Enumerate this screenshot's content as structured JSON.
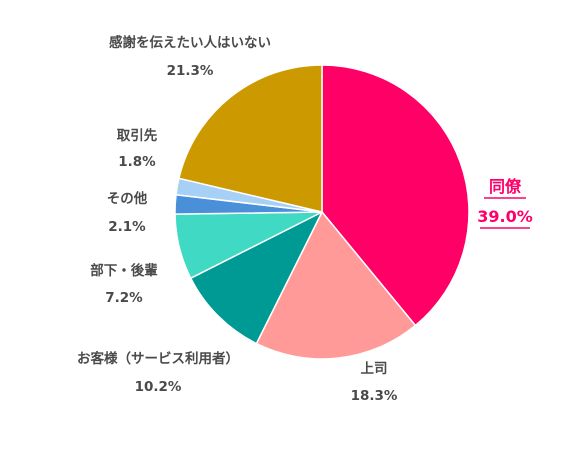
{
  "chart_data": {
    "type": "pie",
    "start_angle_deg": 0,
    "direction": "clockwise",
    "slices": [
      {
        "label": "同僚",
        "value": 39.0,
        "value_text": "39.0%",
        "color": "#ff0066",
        "highlight": true
      },
      {
        "label": "上司",
        "value": 18.3,
        "value_text": "18.3%",
        "color": "#ff9a99"
      },
      {
        "label": "お客様（サービス利用者）",
        "value": 10.2,
        "value_text": "10.2%",
        "color": "#009a94"
      },
      {
        "label": "部下・後輩",
        "value": 7.2,
        "value_text": "7.2%",
        "color": "#3fd9c4"
      },
      {
        "label": "その他",
        "value": 2.1,
        "value_text": "2.1%",
        "color": "#4a90d9"
      },
      {
        "label": "取引先",
        "value": 1.8,
        "value_text": "1.8%",
        "color": "#a6d0f5"
      },
      {
        "label": "感謝を伝えたい人はいない",
        "value": 21.3,
        "value_text": "21.3%",
        "color": "#cc9a00"
      }
    ]
  }
}
